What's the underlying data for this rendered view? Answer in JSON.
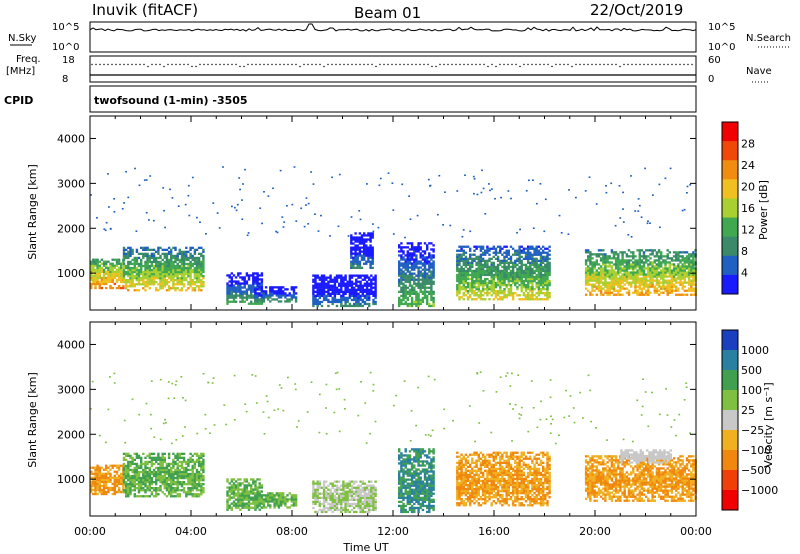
{
  "header": {
    "station": "Inuvik (fitACF)",
    "beam": "Beam 01",
    "date": "22/Oct/2019"
  },
  "strip_nsky": {
    "left_label": "N.Sky",
    "left_ticks": [
      "10^5",
      "10^0"
    ],
    "right_ticks": [
      "10^5",
      "10^0"
    ],
    "right_label": "N.Search"
  },
  "strip_freq": {
    "left_label_1": "Freq.",
    "left_label_2": "[MHz]",
    "left_ticks": [
      "18",
      "8"
    ],
    "right_ticks": [
      "60",
      "0"
    ],
    "right_label": "Nave"
  },
  "cpid": {
    "label": "CPID",
    "program": "twofsound (1-min) -3505"
  },
  "colors": {
    "power_scale": [
      "#1a1aff",
      "#2060c0",
      "#3a8a6a",
      "#40a850",
      "#a8d030",
      "#f0c020",
      "#f08c10",
      "#f04808",
      "#f00000"
    ],
    "velocity_scale": [
      "#1a40c0",
      "#2a80a0",
      "#40a050",
      "#80c040",
      "#c8c8c8",
      "#f0b020",
      "#f08810",
      "#f04008",
      "#f00000"
    ]
  },
  "chart_data": [
    {
      "type": "heatmap",
      "name": "power",
      "title": "",
      "xlabel": "",
      "ylabel": "Slant Range [km]",
      "xlim": [
        "00:00",
        "24:00"
      ],
      "ylim": [
        180,
        4500
      ],
      "yticks": [
        "1000",
        "2000",
        "3000",
        "4000"
      ],
      "colorbar": {
        "label": "Power [dB]",
        "range": [
          0,
          32
        ],
        "tick_labels": [
          "4",
          "8",
          "12",
          "16",
          "20",
          "24",
          "28"
        ]
      },
      "echo_regions": [
        {
          "t_start": 0.0,
          "t_end": 1.3,
          "r_low": 650,
          "r_high": 1300,
          "level": 24
        },
        {
          "t_start": 1.3,
          "t_end": 4.5,
          "r_low": 600,
          "r_high": 1550,
          "level": 20
        },
        {
          "t_start": 5.4,
          "t_end": 6.8,
          "r_low": 300,
          "r_high": 1000,
          "level": 12
        },
        {
          "t_start": 6.5,
          "t_end": 8.2,
          "r_low": 350,
          "r_high": 700,
          "level": 10
        },
        {
          "t_start": 8.8,
          "t_end": 11.3,
          "r_low": 250,
          "r_high": 950,
          "level": 8
        },
        {
          "t_start": 10.3,
          "t_end": 11.2,
          "r_low": 1100,
          "r_high": 1900,
          "level": 8
        },
        {
          "t_start": 12.2,
          "t_end": 13.6,
          "r_low": 250,
          "r_high": 1650,
          "level": 14
        },
        {
          "t_start": 14.5,
          "t_end": 18.2,
          "r_low": 400,
          "r_high": 1600,
          "level": 18
        },
        {
          "t_start": 19.6,
          "t_end": 24.0,
          "r_low": 500,
          "r_high": 1500,
          "level": 22
        }
      ]
    },
    {
      "type": "heatmap",
      "name": "velocity",
      "title": "",
      "xlabel": "Time UT",
      "ylabel": "Slant Range [km]",
      "xlim": [
        "00:00",
        "24:00"
      ],
      "ylim": [
        180,
        4500
      ],
      "yticks": [
        "1000",
        "2000",
        "3000",
        "4000"
      ],
      "xticks": [
        "00:00",
        "04:00",
        "08:00",
        "12:00",
        "16:00",
        "20:00",
        "00:00"
      ],
      "colorbar": {
        "label": "Velocity [m s⁻¹]",
        "range": [
          -1500,
          1500
        ],
        "tick_labels": [
          "1000",
          "500",
          "100",
          "25",
          "−25",
          "−100",
          "−500",
          "−1000"
        ]
      },
      "echo_regions": [
        {
          "t_start": 0.0,
          "t_end": 1.3,
          "r_low": 650,
          "r_high": 1300,
          "level": -100
        },
        {
          "t_start": 1.3,
          "t_end": 4.5,
          "r_low": 600,
          "r_high": 1550,
          "level": 100
        },
        {
          "t_start": 5.4,
          "t_end": 6.8,
          "r_low": 300,
          "r_high": 1000,
          "level": 100
        },
        {
          "t_start": 6.5,
          "t_end": 8.2,
          "r_low": 350,
          "r_high": 700,
          "level": 100
        },
        {
          "t_start": 8.8,
          "t_end": 11.3,
          "r_low": 250,
          "r_high": 950,
          "level": 25
        },
        {
          "t_start": 12.2,
          "t_end": 13.6,
          "r_low": 250,
          "r_high": 1650,
          "level": 500
        },
        {
          "t_start": 14.5,
          "t_end": 18.2,
          "r_low": 400,
          "r_high": 1600,
          "level": -100
        },
        {
          "t_start": 19.6,
          "t_end": 24.0,
          "r_low": 500,
          "r_high": 1500,
          "level": -100
        },
        {
          "t_start": 21.0,
          "t_end": 23.0,
          "r_low": 1350,
          "r_high": 1650,
          "level": 0
        }
      ]
    }
  ]
}
